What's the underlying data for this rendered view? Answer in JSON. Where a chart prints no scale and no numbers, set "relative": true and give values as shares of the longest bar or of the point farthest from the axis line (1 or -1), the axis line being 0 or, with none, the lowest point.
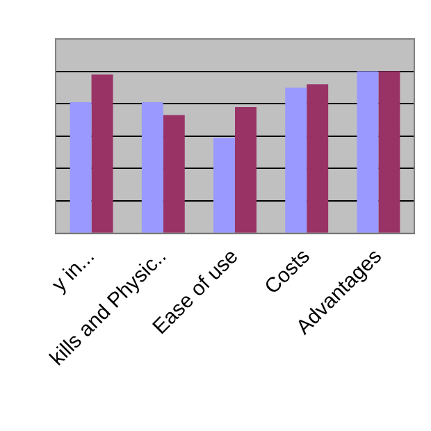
{
  "chart_data": {
    "type": "bar",
    "categories": [
      "y in...",
      "kills and Physic..",
      "Ease of use",
      "Costs",
      "Advantages"
    ],
    "series": [
      {
        "color": "#9999ff",
        "values": [
          0.81,
          0.81,
          0.59,
          0.9,
          1
        ]
      },
      {
        "color": "#993366",
        "values": [
          0.98,
          0.73,
          0.78,
          0.92,
          1
        ]
      }
    ],
    "relative": true,
    "grid": "y",
    "legend": false
  }
}
